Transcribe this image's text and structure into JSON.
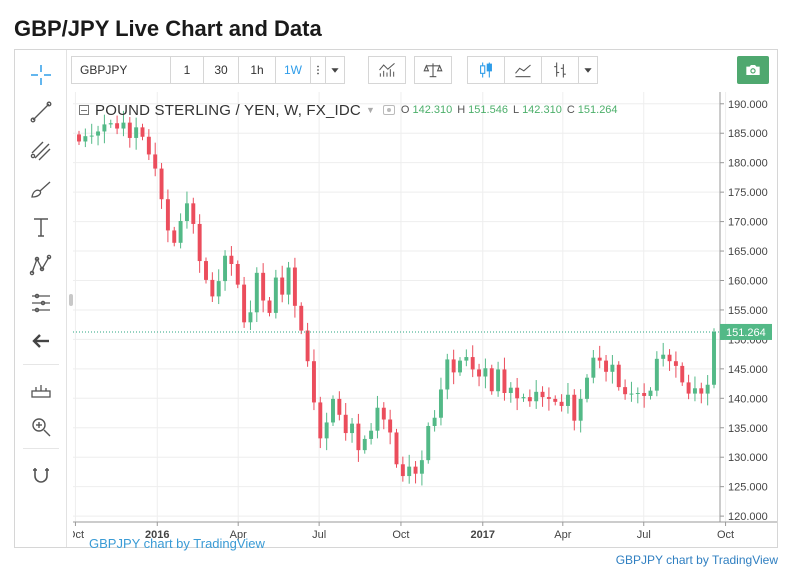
{
  "page": {
    "title": "GBP/JPY Live Chart and Data"
  },
  "toolbar": {
    "symbol": "GBPJPY",
    "intervals": [
      "1",
      "30",
      "1h",
      "1W"
    ],
    "active_interval": "1W"
  },
  "legend": {
    "title": "POUND STERLING / YEN, W, FX_IDC",
    "open_label": "O",
    "open": "142.310",
    "high_label": "H",
    "high": "151.546",
    "low_label": "L",
    "low": "142.310",
    "close_label": "C",
    "close": "151.264"
  },
  "watermark": "GBPJPY chart by TradingView",
  "footer_link": "GBPJPY chart by TradingView",
  "colors": {
    "up": "#53b987",
    "down": "#eb4d5c",
    "accent": "#2f9de9",
    "camera": "#4fa86f",
    "price_line": "#2aa680"
  },
  "icons": [
    "crosshair-icon",
    "trend-line-icon",
    "pitchfork-icon",
    "brush-icon",
    "text-icon",
    "pattern-icon",
    "fib-icon",
    "back-arrow-icon",
    "measure-icon",
    "zoom-in-icon",
    "magnet-icon",
    "indicators-icon",
    "compare-icon",
    "candles-icon",
    "area-chart-icon",
    "bars-icon",
    "camera-icon"
  ],
  "chart_data": {
    "type": "candlestick",
    "title": "",
    "timeframe": "weekly",
    "x_start": "2015-10-05",
    "x_end": "2017-09-18",
    "x_ticks": [
      "Oct",
      "2016",
      "Apr",
      "Jul",
      "Oct",
      "2017",
      "Apr",
      "Jul",
      "Oct"
    ],
    "y_ticks": [
      "190.000",
      "185.000",
      "180.000",
      "175.000",
      "170.000",
      "165.000",
      "160.000",
      "155.000",
      "150.000",
      "145.000",
      "140.000",
      "135.000",
      "130.000",
      "125.000",
      "120.000"
    ],
    "ylim": [
      119,
      192
    ],
    "last_price": "151.264",
    "last_price_value": 151.264,
    "grid": true,
    "closes": [
      183.6,
      184.5,
      184.6,
      185.3,
      186.5,
      186.7,
      185.8,
      186.8,
      184.2,
      186.0,
      184.4,
      181.4,
      179.0,
      173.8,
      168.5,
      166.4,
      170.1,
      173.1,
      169.6,
      163.3,
      160.1,
      157.3,
      159.9,
      164.2,
      162.8,
      159.3,
      152.9,
      154.6,
      161.3,
      156.6,
      154.5,
      160.5,
      157.6,
      162.2,
      155.7,
      151.5,
      146.3,
      139.3,
      133.2,
      135.9,
      139.9,
      137.2,
      134.1,
      135.7,
      131.2,
      133.1,
      134.5,
      138.4,
      136.4,
      134.2,
      128.8,
      126.8,
      128.4,
      127.2,
      129.5,
      135.3,
      136.7,
      141.5,
      146.6,
      144.4,
      146.4,
      147.0,
      144.9,
      143.7,
      145.1,
      141.2,
      144.9,
      140.9,
      141.8,
      140.0,
      140.2,
      139.5,
      141.1,
      140.2,
      139.9,
      139.4,
      138.7,
      140.6,
      136.2,
      139.9,
      143.5,
      146.9,
      146.4,
      144.5,
      145.7,
      141.9,
      140.7,
      140.8,
      140.9,
      140.4,
      141.3,
      146.7,
      147.4,
      146.3,
      145.5,
      142.7,
      140.8,
      141.7,
      140.8,
      142.3,
      151.3
    ],
    "series": [
      {
        "name": "POUND STERLING / YEN, W, FX_IDC",
        "values": "closes"
      }
    ]
  }
}
